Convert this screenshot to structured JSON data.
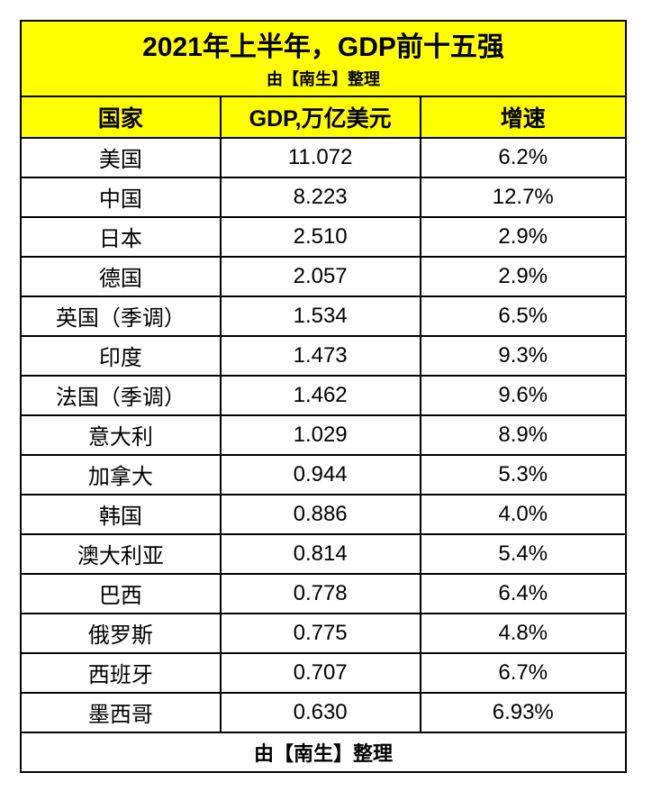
{
  "table": {
    "title": "2021年上半年，GDP前十五强",
    "subtitle": "由【南生】整理",
    "footer": "由【南生】整理",
    "columns": [
      "国家",
      "GDP,万亿美元",
      "增速"
    ],
    "rows": [
      {
        "country": "美国",
        "gdp": "11.072",
        "growth": "6.2%"
      },
      {
        "country": "中国",
        "gdp": "8.223",
        "growth": "12.7%"
      },
      {
        "country": "日本",
        "gdp": "2.510",
        "growth": "2.9%"
      },
      {
        "country": "德国",
        "gdp": "2.057",
        "growth": "2.9%"
      },
      {
        "country": "英国（季调）",
        "gdp": "1.534",
        "growth": "6.5%"
      },
      {
        "country": "印度",
        "gdp": "1.473",
        "growth": "9.3%"
      },
      {
        "country": "法国（季调）",
        "gdp": "1.462",
        "growth": "9.6%"
      },
      {
        "country": "意大利",
        "gdp": "1.029",
        "growth": "8.9%"
      },
      {
        "country": "加拿大",
        "gdp": "0.944",
        "growth": "5.3%"
      },
      {
        "country": "韩国",
        "gdp": "0.886",
        "growth": "4.0%"
      },
      {
        "country": "澳大利亚",
        "gdp": "0.814",
        "growth": "5.4%"
      },
      {
        "country": "巴西",
        "gdp": "0.778",
        "growth": "6.4%"
      },
      {
        "country": "俄罗斯",
        "gdp": "0.775",
        "growth": "4.8%"
      },
      {
        "country": "西班牙",
        "gdp": "0.707",
        "growth": "6.7%"
      },
      {
        "country": "墨西哥",
        "gdp": "0.630",
        "growth": "6.93%"
      }
    ],
    "colors": {
      "header_bg": "#ffff00",
      "border": "#000000",
      "text": "#000000",
      "background": "#ffffff"
    },
    "font_sizes": {
      "title": 30,
      "subtitle": 18,
      "header": 25,
      "data": 24,
      "footer": 22
    },
    "column_widths_pct": [
      33,
      33,
      34
    ]
  }
}
